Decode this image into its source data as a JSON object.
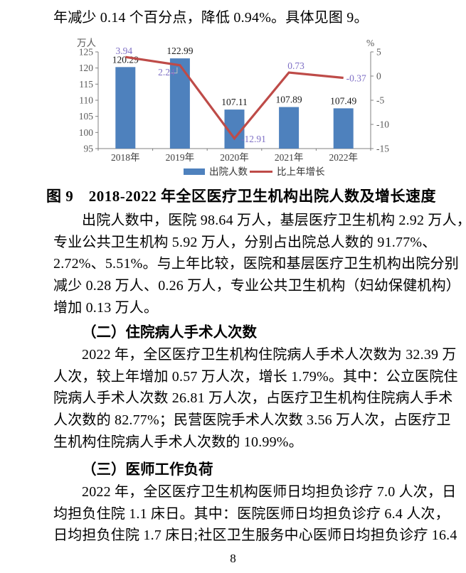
{
  "document": {
    "intro_line": "年减少 0.14 个百分点，降低 0.94%。具体见图 9。",
    "figure_caption": "图 9　2018-2022 年全区医疗卫生机构出院人数及增长速度",
    "para1_lines": [
      "出院人数中，医院 98.64 万人，基层医疗卫生机构 2.92 万人，",
      "专业公共卫生机构 5.92 万人，分别占出院总人数的 91.77%、",
      "2.72%、5.51%。与上年比较，医院和基层医疗卫生机构出院分别",
      "减少 0.28 万人、0.26 万人，专业公共卫生机构（妇幼保健机构）",
      "增加 0.13 万人。"
    ],
    "heading2": "（二）住院病人手术人次数",
    "para2_lines": [
      "2022 年，全区医疗卫生机构住院病人手术人次数为 32.39 万",
      "人次，较上年增加 0.57 万人次，增长 1.79%。其中：公立医院住",
      "院病人手术人次数 26.81 万人次，占医疗卫生机构住院病人手术",
      "人次数的 82.77%；民营医院手术人次数 3.56 万人次，占医疗卫",
      "生机构住院病人手术人次数的 10.99%。"
    ],
    "heading3": "（三）医师工作负荷",
    "para3_lines": [
      "2022 年，全区医疗卫生机构医师日均担负诊疗 7.0 人次，日",
      "均担负住院 1.1 床日。其中：医院医师日均担负诊疗 6.4 人次，",
      "日均担负住院 1.7 床日;社区卫生服务中心医师日均担负诊疗 16.4"
    ],
    "page_number": "8"
  },
  "chart_data": {
    "type": "bar",
    "title": "2018-2022 年全区医疗卫生机构出院人数及增长速度",
    "categories": [
      "2018年",
      "2019年",
      "2020年",
      "2021年",
      "2022年"
    ],
    "series": [
      {
        "name": "出院人数",
        "type": "bar",
        "axis": "left",
        "values": [
          120.29,
          122.99,
          107.11,
          107.89,
          107.49
        ],
        "color": "#4E81BD"
      },
      {
        "name": "比上年增长",
        "type": "line",
        "axis": "right",
        "values": [
          3.94,
          2.24,
          -12.91,
          0.73,
          -0.37
        ],
        "color": "#BE4B48",
        "label_color": "#7E6FC5"
      }
    ],
    "left_axis": {
      "title": "万人",
      "min": 95,
      "max": 125,
      "ticks": [
        125,
        120,
        115,
        110,
        105,
        100,
        95
      ]
    },
    "right_axis": {
      "title": "%",
      "min": -15,
      "max": 5,
      "ticks": [
        5,
        0,
        -5,
        -10,
        -15
      ]
    },
    "legend_position": "bottom",
    "grid": false,
    "axis_color": "#808080",
    "tick_text_color": "#595959",
    "category_text_color": "#404040",
    "bar_label_color": "#1a1a1a"
  }
}
